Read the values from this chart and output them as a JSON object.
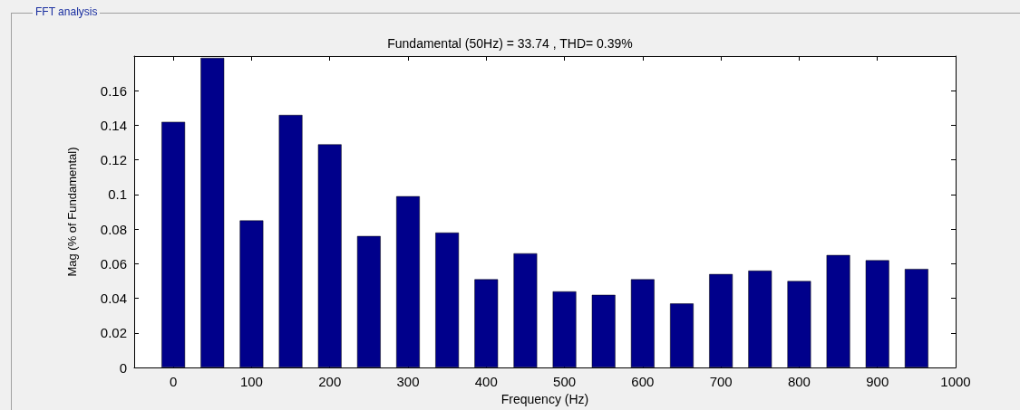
{
  "chart_data": {
    "type": "bar",
    "title": "Fundamental (50Hz) = 33.74 , THD= 0.39%",
    "xlabel": "Frequency (Hz)",
    "ylabel": "Mag (% of Fundamental)",
    "annotations": [
      "FFT analysis"
    ],
    "x": [
      0,
      50,
      100,
      150,
      200,
      250,
      300,
      350,
      400,
      450,
      500,
      550,
      600,
      650,
      700,
      750,
      800,
      850,
      900,
      950
    ],
    "values": [
      0.142,
      0.179,
      0.085,
      0.146,
      0.129,
      0.076,
      0.099,
      0.078,
      0.051,
      0.066,
      0.044,
      0.042,
      0.051,
      0.037,
      0.054,
      0.056,
      0.05,
      0.065,
      0.062,
      0.057
    ],
    "color": "#00008b",
    "xlim": [
      -50,
      1000
    ],
    "xticks": [
      0,
      100,
      200,
      300,
      400,
      500,
      600,
      700,
      800,
      900,
      1000
    ],
    "ylim": [
      0,
      0.18
    ],
    "yticks": [
      0,
      0.02,
      0.04,
      0.06,
      0.08,
      0.1,
      0.12,
      0.14,
      0.16
    ],
    "grid": false
  }
}
